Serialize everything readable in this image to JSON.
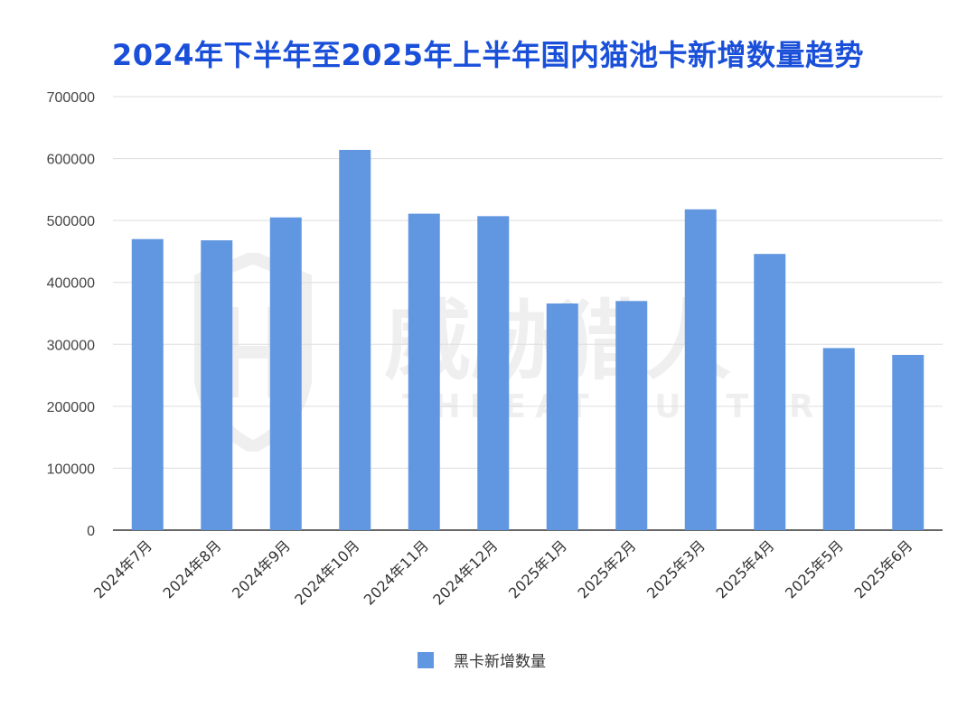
{
  "chart_data": {
    "type": "bar",
    "title": "2024年下半年至2025年上半年国内猫池卡新增数量趋势",
    "categories": [
      "2024年7月",
      "2024年8月",
      "2024年9月",
      "2024年10月",
      "2024年11月",
      "2024年12月",
      "2025年1月",
      "2025年2月",
      "2025年3月",
      "2025年4月",
      "2025年5月",
      "2025年6月"
    ],
    "series": [
      {
        "name": "黑卡新增数量",
        "values": [
          470000,
          468000,
          505000,
          614000,
          511000,
          507000,
          366000,
          370000,
          518000,
          446000,
          294000,
          283000
        ],
        "color": "#6197e0"
      }
    ],
    "ylim": [
      0,
      700000
    ],
    "yticks": [
      0,
      100000,
      200000,
      300000,
      400000,
      500000,
      600000,
      700000
    ],
    "grid": true,
    "legend_position": "bottom"
  },
  "watermark": {
    "text_cn": "威胁猎人",
    "text_en": "THREAT HUNTER",
    "icon": "shield-h-icon"
  }
}
